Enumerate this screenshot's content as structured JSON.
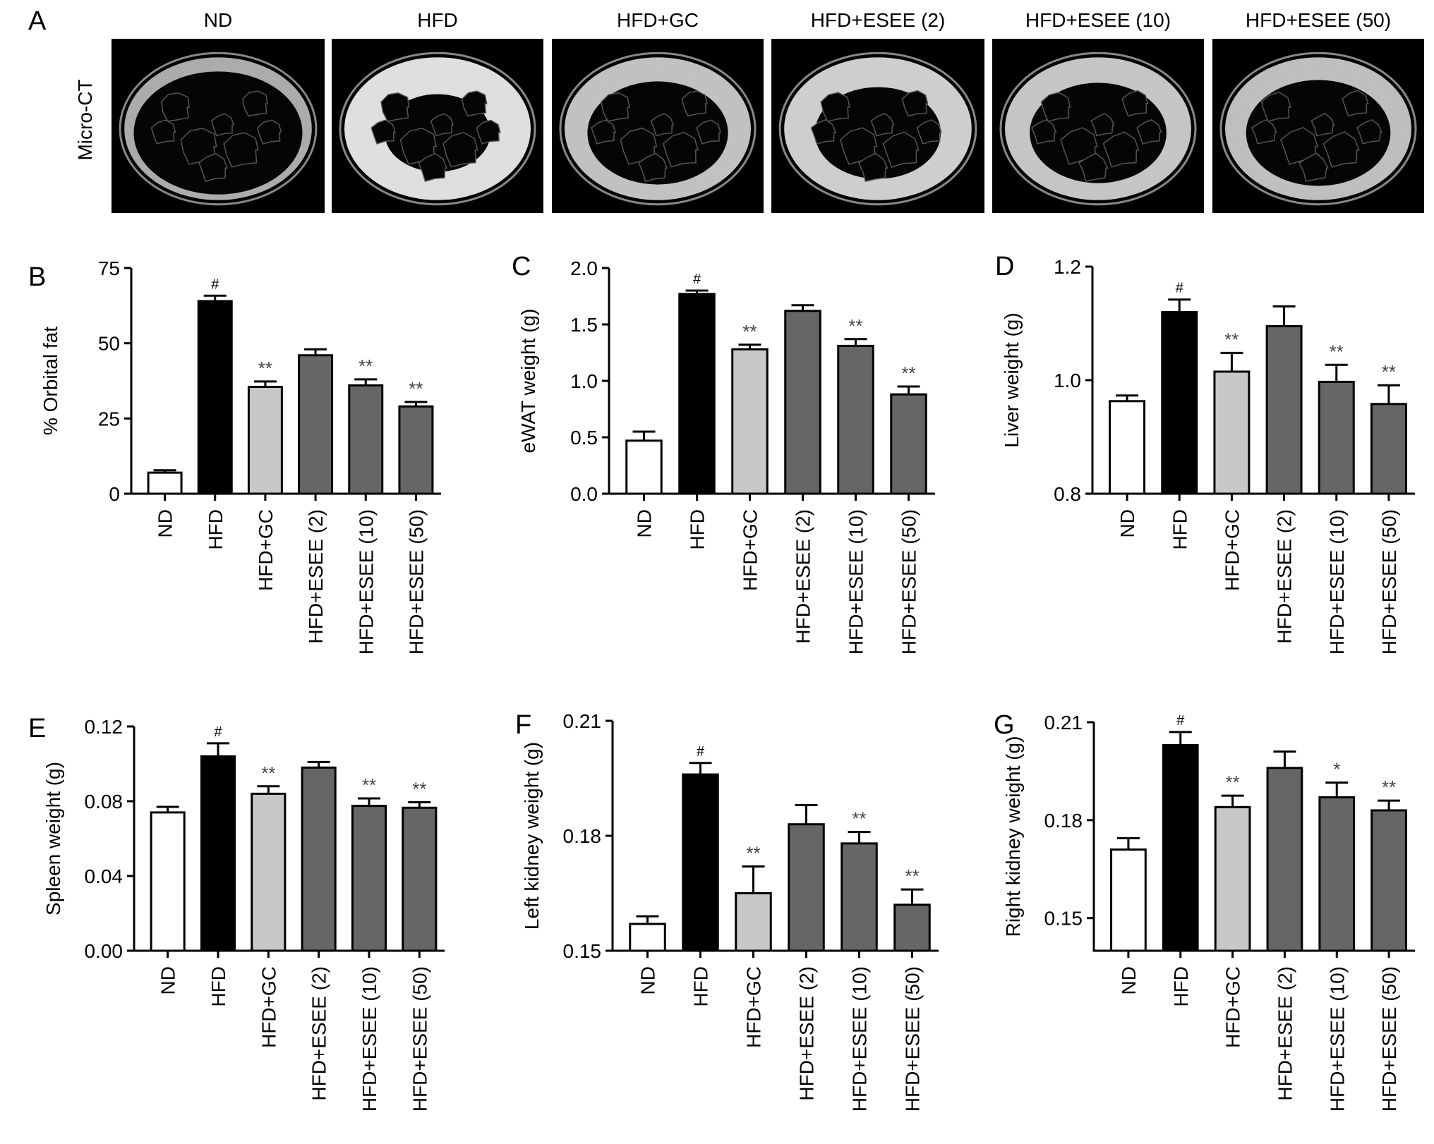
{
  "panel_a": {
    "label": "A",
    "row_label": "Micro-CT",
    "headers": [
      "ND",
      "HFD",
      "HFD+GC",
      "HFD+ESEE (2)",
      "HFD+ESEE (10)",
      "HFD+ESEE (50)"
    ]
  },
  "colors": {
    "ND": "#ffffff",
    "HFD": "#000000",
    "HFD+GC": "#c8c8c8",
    "ESEE": "#666666"
  },
  "chart_data": [
    {
      "panel": "B",
      "type": "bar",
      "categories": [
        "ND",
        "HFD",
        "HFD+GC",
        "HFD+ESEE (2)",
        "HFD+ESEE (10)",
        "HFD+ESEE (50)"
      ],
      "values": [
        7,
        64,
        35.5,
        46,
        36,
        29
      ],
      "errors": [
        0.8,
        1.8,
        1.8,
        2,
        2,
        1.5
      ],
      "significance": [
        "",
        "#",
        "**",
        "",
        "**",
        "**"
      ],
      "ylabel": "% Orbital fat",
      "ylim": [
        0,
        75
      ],
      "yticks": [
        "0",
        "25",
        "50",
        "75"
      ]
    },
    {
      "panel": "C",
      "type": "bar",
      "categories": [
        "ND",
        "HFD",
        "HFD+GC",
        "HFD+ESEE (2)",
        "HFD+ESEE (10)",
        "HFD+ESEE (50)"
      ],
      "values": [
        0.47,
        1.77,
        1.28,
        1.62,
        1.31,
        0.88
      ],
      "errors": [
        0.08,
        0.03,
        0.04,
        0.05,
        0.06,
        0.07
      ],
      "significance": [
        "",
        "#",
        "**",
        "",
        "**",
        "**"
      ],
      "ylabel": "eWAT weight (g)",
      "ylim": [
        0,
        2.0
      ],
      "yticks": [
        "0.0",
        "0.5",
        "1.0",
        "1.5",
        "2.0"
      ]
    },
    {
      "panel": "D",
      "type": "bar",
      "categories": [
        "ND",
        "HFD",
        "HFD+GC",
        "HFD+ESEE (2)",
        "HFD+ESEE (10)",
        "HFD+ESEE (50)"
      ],
      "values": [
        0.963,
        1.12,
        1.015,
        1.095,
        0.997,
        0.958
      ],
      "errors": [
        0.01,
        0.022,
        0.033,
        0.035,
        0.03,
        0.033
      ],
      "significance": [
        "",
        "#",
        "**",
        "",
        "**",
        "**"
      ],
      "ylabel": "Liver weight (g)",
      "ylim": [
        0.8,
        1.2
      ],
      "yticks": [
        "0.8",
        "1.0",
        "1.2"
      ]
    },
    {
      "panel": "E",
      "type": "bar",
      "categories": [
        "ND",
        "HFD",
        "HFD+GC",
        "HFD+ESEE (2)",
        "HFD+ESEE (10)",
        "HFD+ESEE (50)"
      ],
      "values": [
        0.074,
        0.104,
        0.084,
        0.098,
        0.0775,
        0.0765
      ],
      "errors": [
        0.003,
        0.007,
        0.004,
        0.003,
        0.004,
        0.003
      ],
      "significance": [
        "",
        "#",
        "**",
        "",
        "**",
        "**"
      ],
      "ylabel": "Spleen weight (g)",
      "ylim": [
        0,
        0.12
      ],
      "yticks": [
        "0.00",
        "0.04",
        "0.08",
        "0.12"
      ]
    },
    {
      "panel": "F",
      "type": "bar",
      "categories": [
        "ND",
        "HFD",
        "HFD+GC",
        "HFD+ESEE (2)",
        "HFD+ESEE (10)",
        "HFD+ESEE (50)"
      ],
      "values": [
        0.157,
        0.196,
        0.165,
        0.183,
        0.178,
        0.162
      ],
      "errors": [
        0.002,
        0.003,
        0.007,
        0.005,
        0.003,
        0.004
      ],
      "significance": [
        "",
        "#",
        "**",
        "",
        "**",
        "**"
      ],
      "ylabel": "Left kidney weight (g)",
      "ylim": [
        0.15,
        0.21
      ],
      "yticks": [
        "0.15",
        "0.18",
        "0.21"
      ]
    },
    {
      "panel": "G",
      "type": "bar",
      "categories": [
        "ND",
        "HFD",
        "HFD+GC",
        "HFD+ESEE (2)",
        "HFD+ESEE (10)",
        "HFD+ESEE (50)"
      ],
      "values": [
        0.171,
        0.203,
        0.184,
        0.196,
        0.187,
        0.183
      ],
      "errors": [
        0.0035,
        0.004,
        0.0035,
        0.005,
        0.0045,
        0.003
      ],
      "significance": [
        "",
        "#",
        "**",
        "",
        "*",
        "**"
      ],
      "ylabel": "Right kidney weight (g)",
      "ylim": [
        0.14,
        0.21
      ],
      "yticks": [
        "0.15",
        "0.18",
        "0.21"
      ]
    }
  ]
}
